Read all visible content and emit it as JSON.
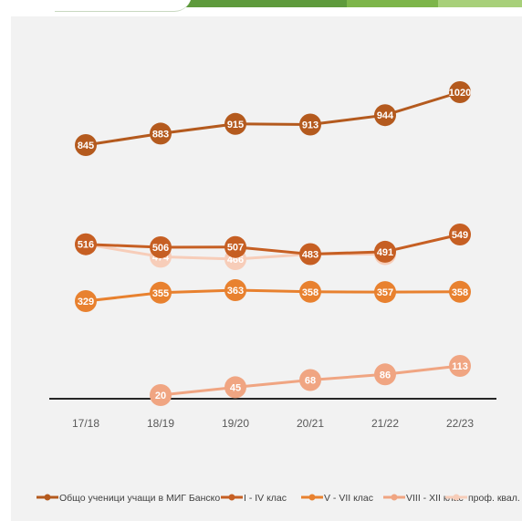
{
  "chart_data": {
    "type": "line",
    "title": "",
    "xlabel": "",
    "ylabel": "",
    "categories": [
      "17/18",
      "18/19",
      "19/20",
      "20/21",
      "21/22",
      "22/23"
    ],
    "grid": false,
    "legend_position": "bottom",
    "series": [
      {
        "name": "Общо ученици учащи в МИГ Банско",
        "color": "#b45a1e",
        "values": [
          845,
          883,
          915,
          913,
          944,
          1020
        ]
      },
      {
        "name": "I - IV клас",
        "color": "#c65f23",
        "values": [
          516,
          506,
          507,
          483,
          491,
          549
        ]
      },
      {
        "name": "V - VII клас",
        "color": "#e8812f",
        "values": [
          329,
          355,
          363,
          358,
          357,
          358
        ]
      },
      {
        "name": "VIII - XII клас",
        "color": "#f0a582",
        "values": [
          null,
          20,
          45,
          68,
          86,
          113
        ]
      },
      {
        "name": "проф. квал.",
        "color": "#f7cdb9",
        "values": [
          516,
          474,
          466,
          483,
          483,
          null
        ]
      }
    ]
  }
}
